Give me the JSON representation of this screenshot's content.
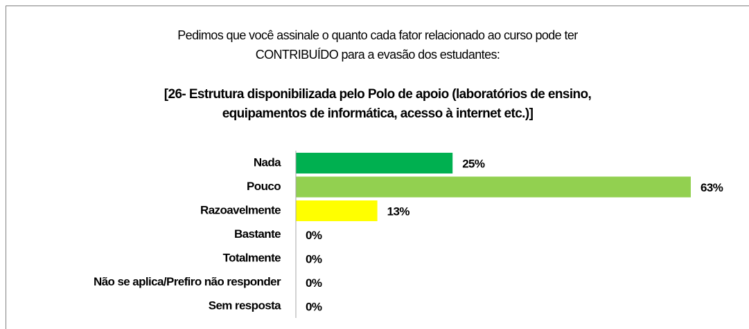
{
  "chart_data": {
    "type": "bar",
    "orientation": "horizontal",
    "title": [
      "Pedimos que você assinale o quanto cada fator  relacionado ao curso pode ter",
      "CONTRIBUÍDO para a evasão dos estudantes:"
    ],
    "subtitle": [
      "[26- Estrutura disponibilizada pelo Polo de apoio (laboratórios de ensino,",
      "equipamentos de informática,  acesso à internet etc.)]"
    ],
    "categories": [
      "Nada",
      "Pouco",
      "Razoavelmente",
      "Bastante",
      "Totalmente",
      "Não se aplica/Prefiro não responder",
      "Sem resposta"
    ],
    "values": [
      25,
      63,
      13,
      0,
      0,
      0,
      0
    ],
    "value_labels": [
      "25%",
      "63%",
      "13%",
      "0%",
      "0%",
      "0%",
      "0%"
    ],
    "colors": [
      "#00b050",
      "#92d050",
      "#ffff00",
      "#bfbfbf",
      "#bfbfbf",
      "#bfbfbf",
      "#bfbfbf"
    ],
    "xlim": [
      0,
      63
    ]
  }
}
